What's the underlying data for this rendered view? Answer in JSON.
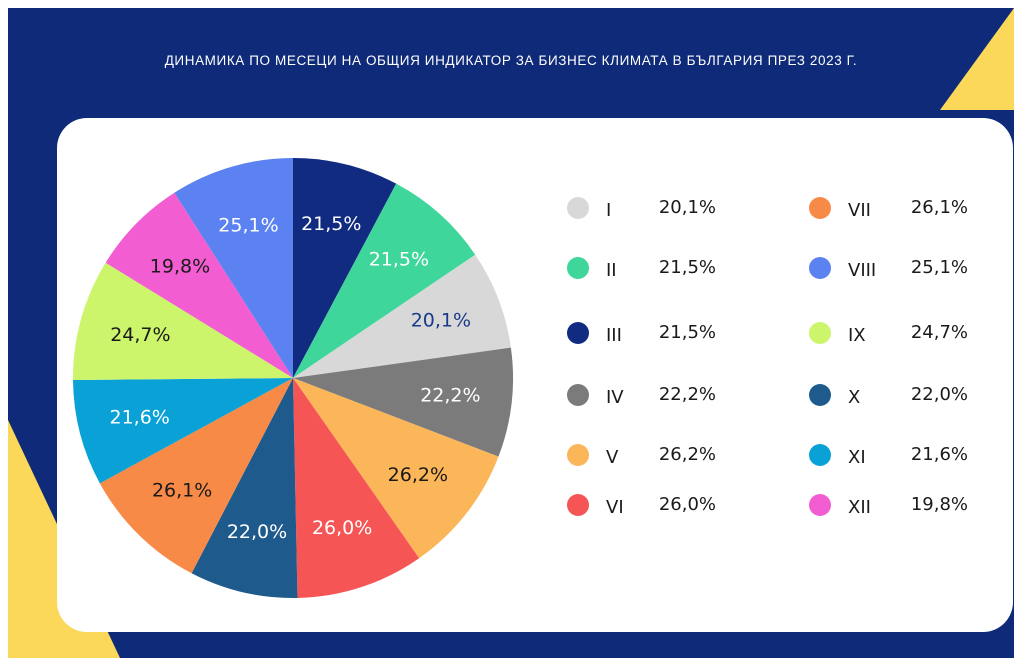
{
  "chart_data": {
    "type": "pie",
    "title": "ДИНАМИКА ПО МЕСЕЦИ НА ОБЩИЯ ИНДИКАТОР ЗА БИЗНЕС КЛИМАТА В БЪЛГАРИЯ ПРЕЗ 2023 Г.",
    "categories": [
      "III",
      "II",
      "I",
      "IV",
      "V",
      "VI",
      "X",
      "VII",
      "XI",
      "IX",
      "XII",
      "VIII"
    ],
    "values": [
      21.5,
      21.5,
      20.1,
      22.2,
      26.2,
      26.0,
      22.0,
      26.1,
      21.6,
      24.7,
      19.8,
      25.1
    ],
    "value_labels": [
      "21,5%",
      "21,5%",
      "20,1%",
      "22,2%",
      "26,2%",
      "26,0%",
      "22,0%",
      "26,1%",
      "21,6%",
      "24,7%",
      "19,8%",
      "25,1%"
    ],
    "colors": [
      "#112b80",
      "#3fd69b",
      "#d8d8d8",
      "#7b7b7b",
      "#fbb65a",
      "#f65555",
      "#1f5a8c",
      "#f88a48",
      "#0aa2d6",
      "#ccf56c",
      "#f25ed2",
      "#5b82f0"
    ]
  }
}
